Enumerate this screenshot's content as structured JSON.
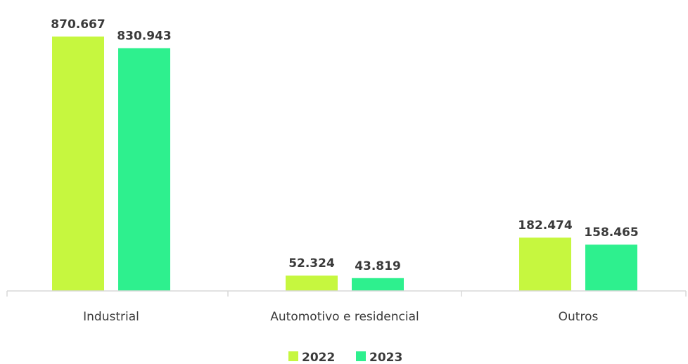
{
  "chart_data": {
    "type": "bar",
    "categories": [
      "Industrial",
      "Automotivo e residencial",
      "Outros"
    ],
    "series": [
      {
        "name": "2022",
        "values": [
          870.667,
          52.324,
          182.474
        ],
        "labels": [
          "870.667",
          "52.324",
          "182.474"
        ],
        "color": "#C6F73F"
      },
      {
        "name": "2023",
        "values": [
          830.943,
          43.819,
          158.465
        ],
        "labels": [
          "830.943",
          "43.819",
          "158.465"
        ],
        "color": "#2EF08E"
      }
    ],
    "ylim": [
      0,
      870.667
    ],
    "grid": false,
    "legend_position": "bottom",
    "axis_color": "#d9d9d9"
  }
}
